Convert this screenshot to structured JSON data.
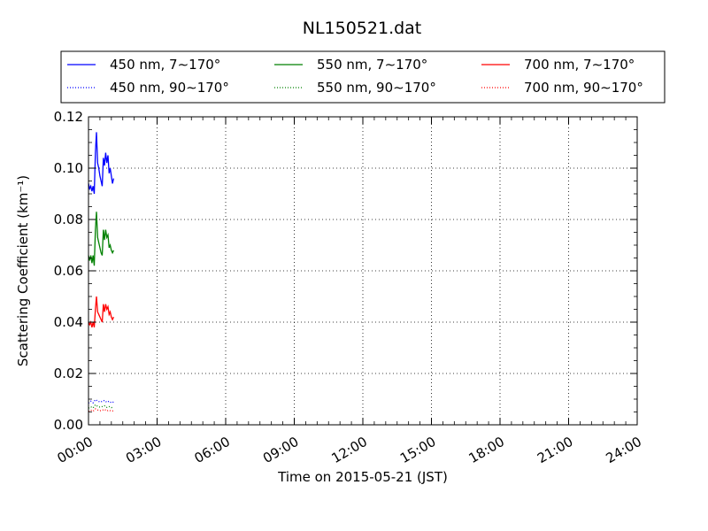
{
  "chart_data": {
    "type": "line",
    "title": "NL150521.dat",
    "xlabel": "Time on 2015-05-21 (JST)",
    "ylabel": "Scattering Coefficient (km⁻¹)",
    "xlim": [
      "00:00",
      "24:00"
    ],
    "ylim": [
      0.0,
      0.12
    ],
    "grid": true,
    "legend_position": "top",
    "x_tick_labels": [
      "00:00",
      "03:00",
      "06:00",
      "09:00",
      "12:00",
      "15:00",
      "18:00",
      "21:00",
      "24:00"
    ],
    "y_tick_labels": [
      "0.00",
      "0.02",
      "0.04",
      "0.06",
      "0.08",
      "0.10",
      "0.12"
    ],
    "y_ticks": [
      0.0,
      0.02,
      0.04,
      0.06,
      0.08,
      0.1,
      0.12
    ],
    "x_unit": "hours",
    "series": [
      {
        "name": "450 nm, 7∼170°",
        "color": "#0000ff",
        "style": "solid",
        "x": [
          0.0,
          0.05,
          0.1,
          0.15,
          0.2,
          0.25,
          0.3,
          0.35,
          0.4,
          0.45,
          0.5,
          0.55,
          0.6,
          0.65,
          0.7,
          0.75,
          0.8,
          0.85,
          0.9,
          0.95,
          1.0,
          1.05,
          1.1
        ],
        "y": [
          0.094,
          0.092,
          0.093,
          0.091,
          0.093,
          0.09,
          0.106,
          0.114,
          0.102,
          0.1,
          0.097,
          0.095,
          0.093,
          0.104,
          0.101,
          0.106,
          0.102,
          0.105,
          0.098,
          0.1,
          0.097,
          0.094,
          0.096
        ]
      },
      {
        "name": "450 nm, 90∼170°",
        "color": "#0000ff",
        "style": "dotted",
        "x": [
          0.0,
          0.1,
          0.2,
          0.3,
          0.4,
          0.5,
          0.6,
          0.7,
          0.8,
          0.9,
          1.0,
          1.1
        ],
        "y": [
          0.0085,
          0.0092,
          0.0086,
          0.0098,
          0.0093,
          0.0089,
          0.0091,
          0.0095,
          0.0088,
          0.0092,
          0.0086,
          0.0089
        ]
      },
      {
        "name": "550 nm, 7∼170°",
        "color": "#008000",
        "style": "solid",
        "x": [
          0.0,
          0.05,
          0.1,
          0.15,
          0.2,
          0.25,
          0.3,
          0.35,
          0.4,
          0.45,
          0.5,
          0.55,
          0.6,
          0.65,
          0.7,
          0.75,
          0.8,
          0.85,
          0.9,
          0.95,
          1.0,
          1.05,
          1.1
        ],
        "y": [
          0.066,
          0.064,
          0.066,
          0.063,
          0.066,
          0.062,
          0.076,
          0.083,
          0.073,
          0.071,
          0.069,
          0.067,
          0.066,
          0.076,
          0.072,
          0.076,
          0.073,
          0.074,
          0.069,
          0.07,
          0.068,
          0.067,
          0.068
        ]
      },
      {
        "name": "550 nm, 90∼170°",
        "color": "#008000",
        "style": "dotted",
        "x": [
          0.0,
          0.1,
          0.2,
          0.3,
          0.4,
          0.5,
          0.6,
          0.7,
          0.8,
          0.9,
          1.0,
          1.1
        ],
        "y": [
          0.0065,
          0.007,
          0.0066,
          0.0078,
          0.0072,
          0.0069,
          0.0071,
          0.0074,
          0.0068,
          0.0071,
          0.0067,
          0.0069
        ]
      },
      {
        "name": "700 nm, 7∼170°",
        "color": "#ff0000",
        "style": "solid",
        "x": [
          0.0,
          0.05,
          0.1,
          0.15,
          0.2,
          0.25,
          0.3,
          0.35,
          0.4,
          0.45,
          0.5,
          0.55,
          0.6,
          0.65,
          0.7,
          0.75,
          0.8,
          0.85,
          0.9,
          0.95,
          1.0,
          1.05,
          1.1
        ],
        "y": [
          0.04,
          0.039,
          0.04,
          0.038,
          0.04,
          0.038,
          0.045,
          0.05,
          0.044,
          0.043,
          0.042,
          0.041,
          0.04,
          0.047,
          0.044,
          0.047,
          0.045,
          0.046,
          0.043,
          0.044,
          0.042,
          0.041,
          0.042
        ]
      },
      {
        "name": "700 nm, 90∼170°",
        "color": "#ff0000",
        "style": "dotted",
        "x": [
          0.0,
          0.1,
          0.2,
          0.3,
          0.4,
          0.5,
          0.6,
          0.7,
          0.8,
          0.9,
          1.0,
          1.1
        ],
        "y": [
          0.0052,
          0.0057,
          0.0053,
          0.0062,
          0.0058,
          0.0055,
          0.0057,
          0.006,
          0.0054,
          0.0057,
          0.0053,
          0.0055
        ]
      }
    ]
  }
}
